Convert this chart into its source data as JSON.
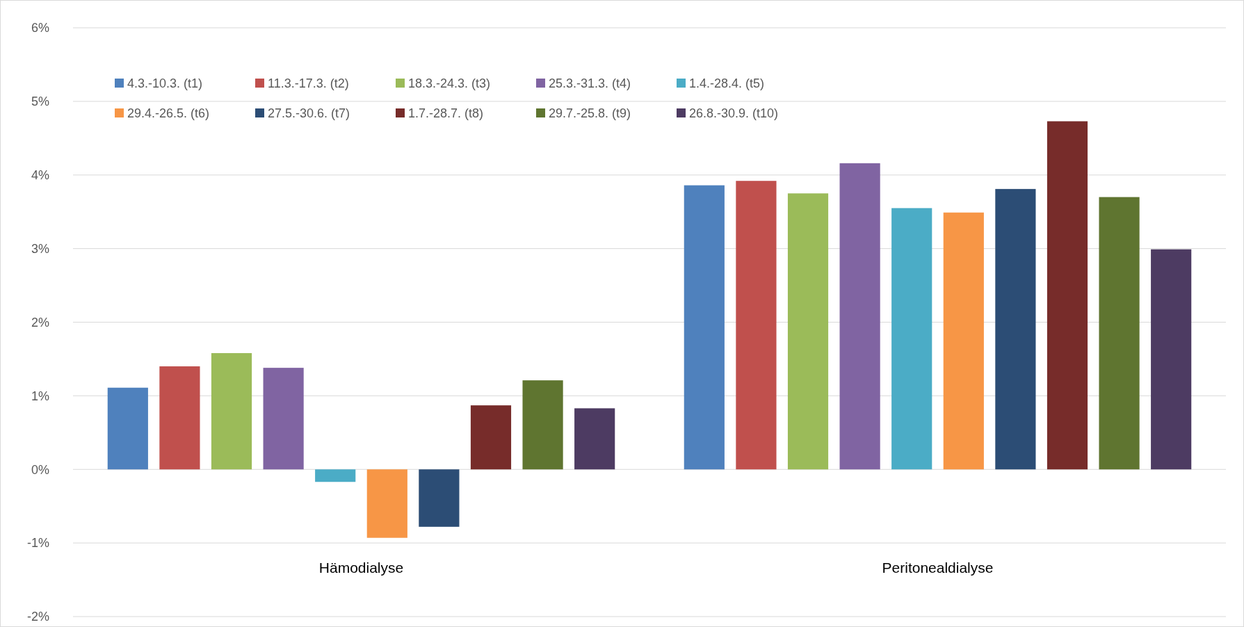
{
  "chart_data": {
    "type": "bar",
    "categories": [
      "Hämodialyse",
      "Peritonealdialyse"
    ],
    "series": [
      {
        "name": "4.3.-10.3. (t1)",
        "color": "#4f81bd",
        "values": [
          1.11,
          3.86
        ]
      },
      {
        "name": "11.3.-17.3. (t2)",
        "color": "#c0504d",
        "values": [
          1.4,
          3.92
        ]
      },
      {
        "name": "18.3.-24.3. (t3)",
        "color": "#9bbb59",
        "values": [
          1.58,
          3.75
        ]
      },
      {
        "name": "25.3.-31.3. (t4)",
        "color": "#8064a2",
        "values": [
          1.38,
          4.16
        ]
      },
      {
        "name": "1.4.-28.4. (t5)",
        "color": "#4bacc6",
        "values": [
          -0.17,
          3.55
        ]
      },
      {
        "name": "29.4.-26.5. (t6)",
        "color": "#f79646",
        "values": [
          -0.93,
          3.49
        ]
      },
      {
        "name": "27.5.-30.6. (t7)",
        "color": "#2c4d75",
        "values": [
          -0.78,
          3.81
        ]
      },
      {
        "name": "1.7.-28.7. (t8)",
        "color": "#772c2a",
        "values": [
          0.87,
          4.73
        ]
      },
      {
        "name": "29.7.-25.8. (t9)",
        "color": "#5f7530",
        "values": [
          1.21,
          3.7
        ]
      },
      {
        "name": "26.8.-30.9. (t10)",
        "color": "#4d3b62",
        "values": [
          0.83,
          2.99
        ]
      }
    ],
    "ylim": [
      -2,
      6
    ],
    "yticks": [
      {
        "value": -2,
        "label": "-2%"
      },
      {
        "value": -1,
        "label": "-1%"
      },
      {
        "value": 0,
        "label": "0%"
      },
      {
        "value": 1,
        "label": "1%"
      },
      {
        "value": 2,
        "label": "2%"
      },
      {
        "value": 3,
        "label": "3%"
      },
      {
        "value": 4,
        "label": "4%"
      },
      {
        "value": 5,
        "label": "5%"
      },
      {
        "value": 6,
        "label": "6%"
      }
    ],
    "grid": "y",
    "legend": "top"
  }
}
